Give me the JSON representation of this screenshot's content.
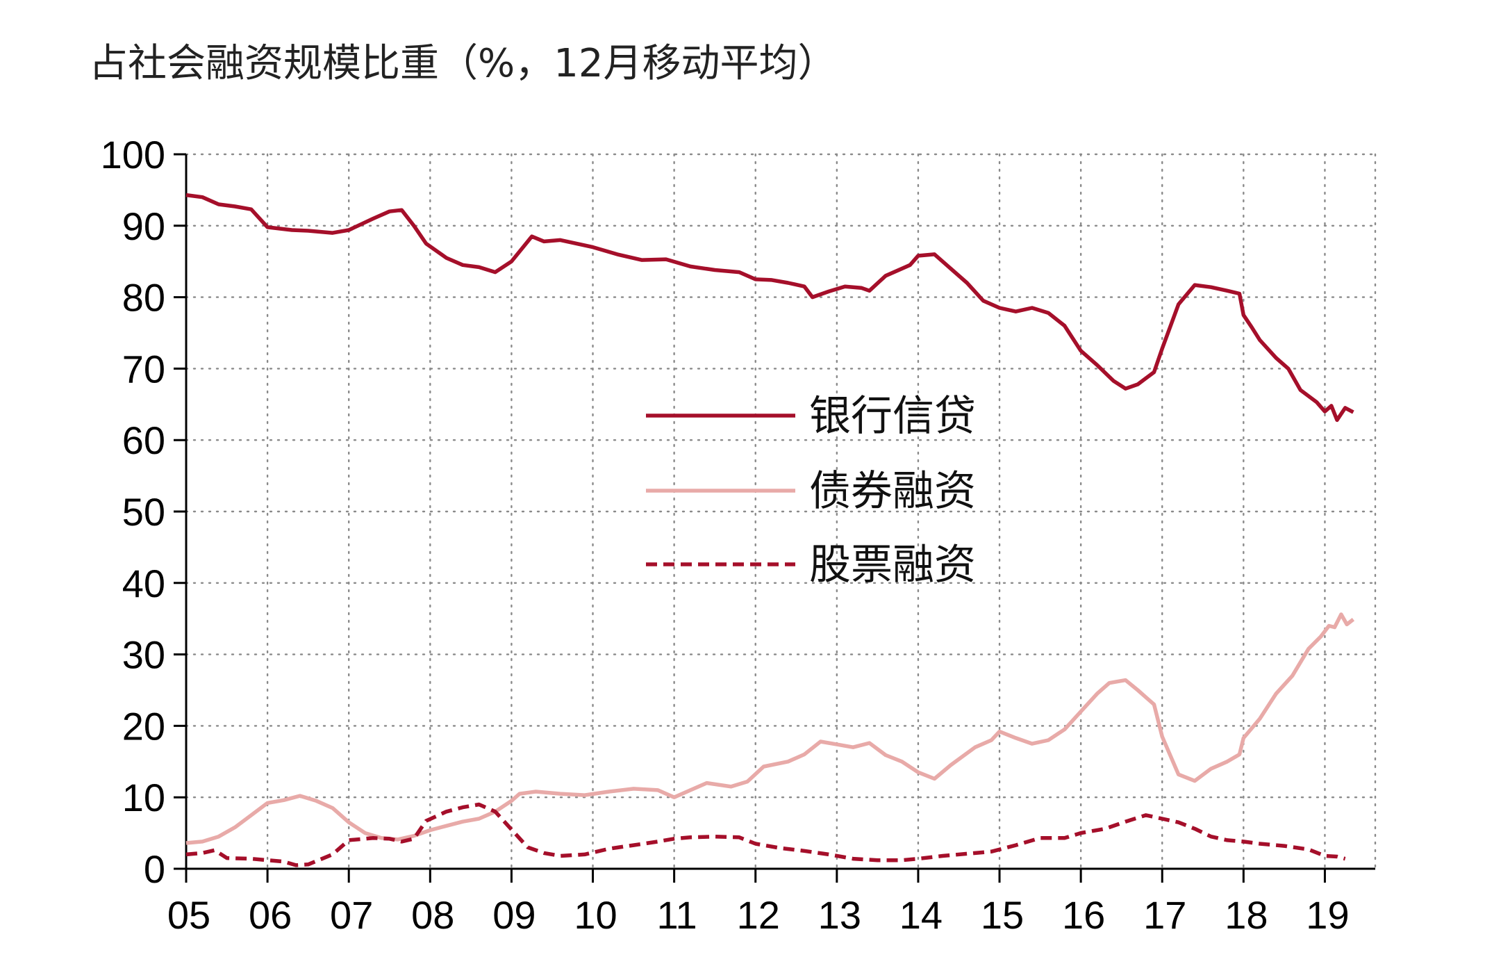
{
  "title": "占社会融资规模比重（%，12月移动平均）",
  "colors": {
    "bank": "#a50f2a",
    "bond": "#e8aaa8",
    "equity": "#a50f2a",
    "grid": "#8a8a8a",
    "axis": "#000000"
  },
  "chart_data": {
    "type": "line",
    "title": "占社会融资规模比重（%，12月移动平均）",
    "xlabel": "",
    "ylabel": "",
    "x_ticks": [
      "05",
      "06",
      "07",
      "08",
      "09",
      "10",
      "11",
      "12",
      "13",
      "14",
      "15",
      "16",
      "17",
      "18",
      "19"
    ],
    "xlim": [
      2005.0,
      2019.5
    ],
    "ylim": [
      0,
      100
    ],
    "y_ticks": [
      0,
      10,
      20,
      30,
      40,
      50,
      60,
      70,
      80,
      90,
      100
    ],
    "grid": true,
    "legend_position": "center",
    "series": [
      {
        "name": "银行信贷",
        "style": "solid",
        "points": [
          [
            2005.0,
            94.3
          ],
          [
            2005.2,
            94.0
          ],
          [
            2005.4,
            93.0
          ],
          [
            2005.6,
            92.7
          ],
          [
            2005.8,
            92.3
          ],
          [
            2006.0,
            89.8
          ],
          [
            2006.3,
            89.4
          ],
          [
            2006.5,
            89.3
          ],
          [
            2006.8,
            89.0
          ],
          [
            2007.0,
            89.4
          ],
          [
            2007.3,
            91.0
          ],
          [
            2007.5,
            92.0
          ],
          [
            2007.65,
            92.2
          ],
          [
            2007.8,
            90.0
          ],
          [
            2007.95,
            87.5
          ],
          [
            2008.2,
            85.5
          ],
          [
            2008.4,
            84.5
          ],
          [
            2008.6,
            84.2
          ],
          [
            2008.8,
            83.5
          ],
          [
            2009.0,
            85.0
          ],
          [
            2009.25,
            88.5
          ],
          [
            2009.4,
            87.8
          ],
          [
            2009.6,
            88.0
          ],
          [
            2010.0,
            87.0
          ],
          [
            2010.3,
            86.0
          ],
          [
            2010.6,
            85.2
          ],
          [
            2010.9,
            85.3
          ],
          [
            2011.2,
            84.3
          ],
          [
            2011.5,
            83.8
          ],
          [
            2011.8,
            83.5
          ],
          [
            2012.0,
            82.5
          ],
          [
            2012.2,
            82.4
          ],
          [
            2012.4,
            82.0
          ],
          [
            2012.6,
            81.5
          ],
          [
            2012.7,
            80.0
          ],
          [
            2012.9,
            80.8
          ],
          [
            2013.1,
            81.5
          ],
          [
            2013.3,
            81.3
          ],
          [
            2013.4,
            80.9
          ],
          [
            2013.6,
            83.0
          ],
          [
            2013.9,
            84.5
          ],
          [
            2014.0,
            85.8
          ],
          [
            2014.2,
            86.0
          ],
          [
            2014.4,
            84.0
          ],
          [
            2014.6,
            82.0
          ],
          [
            2014.8,
            79.5
          ],
          [
            2015.0,
            78.5
          ],
          [
            2015.2,
            78.0
          ],
          [
            2015.4,
            78.5
          ],
          [
            2015.6,
            77.8
          ],
          [
            2015.8,
            76.0
          ],
          [
            2016.0,
            72.5
          ],
          [
            2016.2,
            70.5
          ],
          [
            2016.4,
            68.3
          ],
          [
            2016.55,
            67.2
          ],
          [
            2016.7,
            67.8
          ],
          [
            2016.9,
            69.5
          ],
          [
            2017.0,
            72.8
          ],
          [
            2017.2,
            79.0
          ],
          [
            2017.4,
            81.7
          ],
          [
            2017.6,
            81.4
          ],
          [
            2017.8,
            80.9
          ],
          [
            2017.95,
            80.5
          ],
          [
            2018.0,
            77.5
          ],
          [
            2018.1,
            75.8
          ],
          [
            2018.2,
            74.0
          ],
          [
            2018.4,
            71.5
          ],
          [
            2018.55,
            70.0
          ],
          [
            2018.7,
            67.0
          ],
          [
            2018.9,
            65.3
          ],
          [
            2019.0,
            64.0
          ],
          [
            2019.08,
            64.8
          ],
          [
            2019.15,
            62.8
          ],
          [
            2019.25,
            64.5
          ],
          [
            2019.35,
            63.9
          ]
        ]
      },
      {
        "name": "债券融资",
        "style": "solid",
        "points": [
          [
            2005.0,
            3.6
          ],
          [
            2005.2,
            3.8
          ],
          [
            2005.4,
            4.5
          ],
          [
            2005.6,
            5.8
          ],
          [
            2005.8,
            7.5
          ],
          [
            2006.0,
            9.2
          ],
          [
            2006.2,
            9.6
          ],
          [
            2006.4,
            10.2
          ],
          [
            2006.6,
            9.5
          ],
          [
            2006.8,
            8.5
          ],
          [
            2007.0,
            6.5
          ],
          [
            2007.2,
            5.0
          ],
          [
            2007.4,
            4.3
          ],
          [
            2007.6,
            4.1
          ],
          [
            2007.8,
            4.6
          ],
          [
            2008.0,
            5.4
          ],
          [
            2008.2,
            6.0
          ],
          [
            2008.4,
            6.6
          ],
          [
            2008.6,
            7.0
          ],
          [
            2008.8,
            8.0
          ],
          [
            2009.0,
            9.5
          ],
          [
            2009.1,
            10.5
          ],
          [
            2009.3,
            10.8
          ],
          [
            2009.6,
            10.5
          ],
          [
            2009.9,
            10.3
          ],
          [
            2010.2,
            10.8
          ],
          [
            2010.5,
            11.2
          ],
          [
            2010.8,
            11.0
          ],
          [
            2011.0,
            10.0
          ],
          [
            2011.2,
            11.0
          ],
          [
            2011.4,
            12.0
          ],
          [
            2011.7,
            11.5
          ],
          [
            2011.9,
            12.2
          ],
          [
            2012.1,
            14.3
          ],
          [
            2012.4,
            15.0
          ],
          [
            2012.6,
            16.0
          ],
          [
            2012.8,
            17.8
          ],
          [
            2013.0,
            17.4
          ],
          [
            2013.2,
            17.0
          ],
          [
            2013.4,
            17.6
          ],
          [
            2013.6,
            15.9
          ],
          [
            2013.8,
            15.0
          ],
          [
            2014.0,
            13.5
          ],
          [
            2014.2,
            12.6
          ],
          [
            2014.4,
            14.5
          ],
          [
            2014.7,
            17.0
          ],
          [
            2014.9,
            18.0
          ],
          [
            2015.0,
            19.2
          ],
          [
            2015.2,
            18.3
          ],
          [
            2015.4,
            17.5
          ],
          [
            2015.6,
            18.0
          ],
          [
            2015.8,
            19.5
          ],
          [
            2016.0,
            22.0
          ],
          [
            2016.2,
            24.5
          ],
          [
            2016.35,
            26.0
          ],
          [
            2016.55,
            26.4
          ],
          [
            2016.7,
            25.0
          ],
          [
            2016.9,
            23.0
          ],
          [
            2017.0,
            18.5
          ],
          [
            2017.2,
            13.2
          ],
          [
            2017.4,
            12.3
          ],
          [
            2017.6,
            14.0
          ],
          [
            2017.8,
            15.0
          ],
          [
            2017.95,
            16.0
          ],
          [
            2018.0,
            18.3
          ],
          [
            2018.2,
            21.0
          ],
          [
            2018.4,
            24.5
          ],
          [
            2018.6,
            27.0
          ],
          [
            2018.8,
            30.8
          ],
          [
            2018.95,
            32.5
          ],
          [
            2019.05,
            34.0
          ],
          [
            2019.12,
            33.8
          ],
          [
            2019.2,
            35.6
          ],
          [
            2019.27,
            34.2
          ],
          [
            2019.35,
            34.9
          ]
        ]
      },
      {
        "name": "股票融资",
        "style": "dashed",
        "points": [
          [
            2005.0,
            2.0
          ],
          [
            2005.2,
            2.2
          ],
          [
            2005.35,
            2.6
          ],
          [
            2005.5,
            1.5
          ],
          [
            2005.8,
            1.4
          ],
          [
            2006.0,
            1.2
          ],
          [
            2006.2,
            1.0
          ],
          [
            2006.35,
            0.5
          ],
          [
            2006.5,
            0.6
          ],
          [
            2006.8,
            2.0
          ],
          [
            2007.0,
            4.0
          ],
          [
            2007.3,
            4.3
          ],
          [
            2007.5,
            4.2
          ],
          [
            2007.65,
            3.8
          ],
          [
            2007.8,
            4.2
          ],
          [
            2007.95,
            6.7
          ],
          [
            2008.2,
            8.0
          ],
          [
            2008.4,
            8.6
          ],
          [
            2008.6,
            9.0
          ],
          [
            2008.8,
            8.0
          ],
          [
            2009.0,
            5.5
          ],
          [
            2009.2,
            3.0
          ],
          [
            2009.4,
            2.2
          ],
          [
            2009.6,
            1.8
          ],
          [
            2009.9,
            2.0
          ],
          [
            2010.2,
            2.8
          ],
          [
            2010.5,
            3.3
          ],
          [
            2010.8,
            3.8
          ],
          [
            2011.0,
            4.2
          ],
          [
            2011.2,
            4.4
          ],
          [
            2011.5,
            4.5
          ],
          [
            2011.8,
            4.4
          ],
          [
            2012.0,
            3.5
          ],
          [
            2012.3,
            2.9
          ],
          [
            2012.6,
            2.5
          ],
          [
            2012.9,
            2.0
          ],
          [
            2013.2,
            1.4
          ],
          [
            2013.5,
            1.2
          ],
          [
            2013.8,
            1.2
          ],
          [
            2014.0,
            1.4
          ],
          [
            2014.3,
            1.8
          ],
          [
            2014.6,
            2.1
          ],
          [
            2014.9,
            2.4
          ],
          [
            2015.2,
            3.3
          ],
          [
            2015.5,
            4.3
          ],
          [
            2015.8,
            4.3
          ],
          [
            2016.0,
            5.0
          ],
          [
            2016.3,
            5.6
          ],
          [
            2016.55,
            6.6
          ],
          [
            2016.8,
            7.5
          ],
          [
            2017.0,
            7.0
          ],
          [
            2017.2,
            6.5
          ],
          [
            2017.4,
            5.6
          ],
          [
            2017.6,
            4.5
          ],
          [
            2017.8,
            4.0
          ],
          [
            2018.0,
            3.8
          ],
          [
            2018.2,
            3.5
          ],
          [
            2018.5,
            3.2
          ],
          [
            2018.8,
            2.7
          ],
          [
            2019.0,
            1.8
          ],
          [
            2019.15,
            1.7
          ],
          [
            2019.25,
            1.4
          ]
        ]
      }
    ]
  }
}
